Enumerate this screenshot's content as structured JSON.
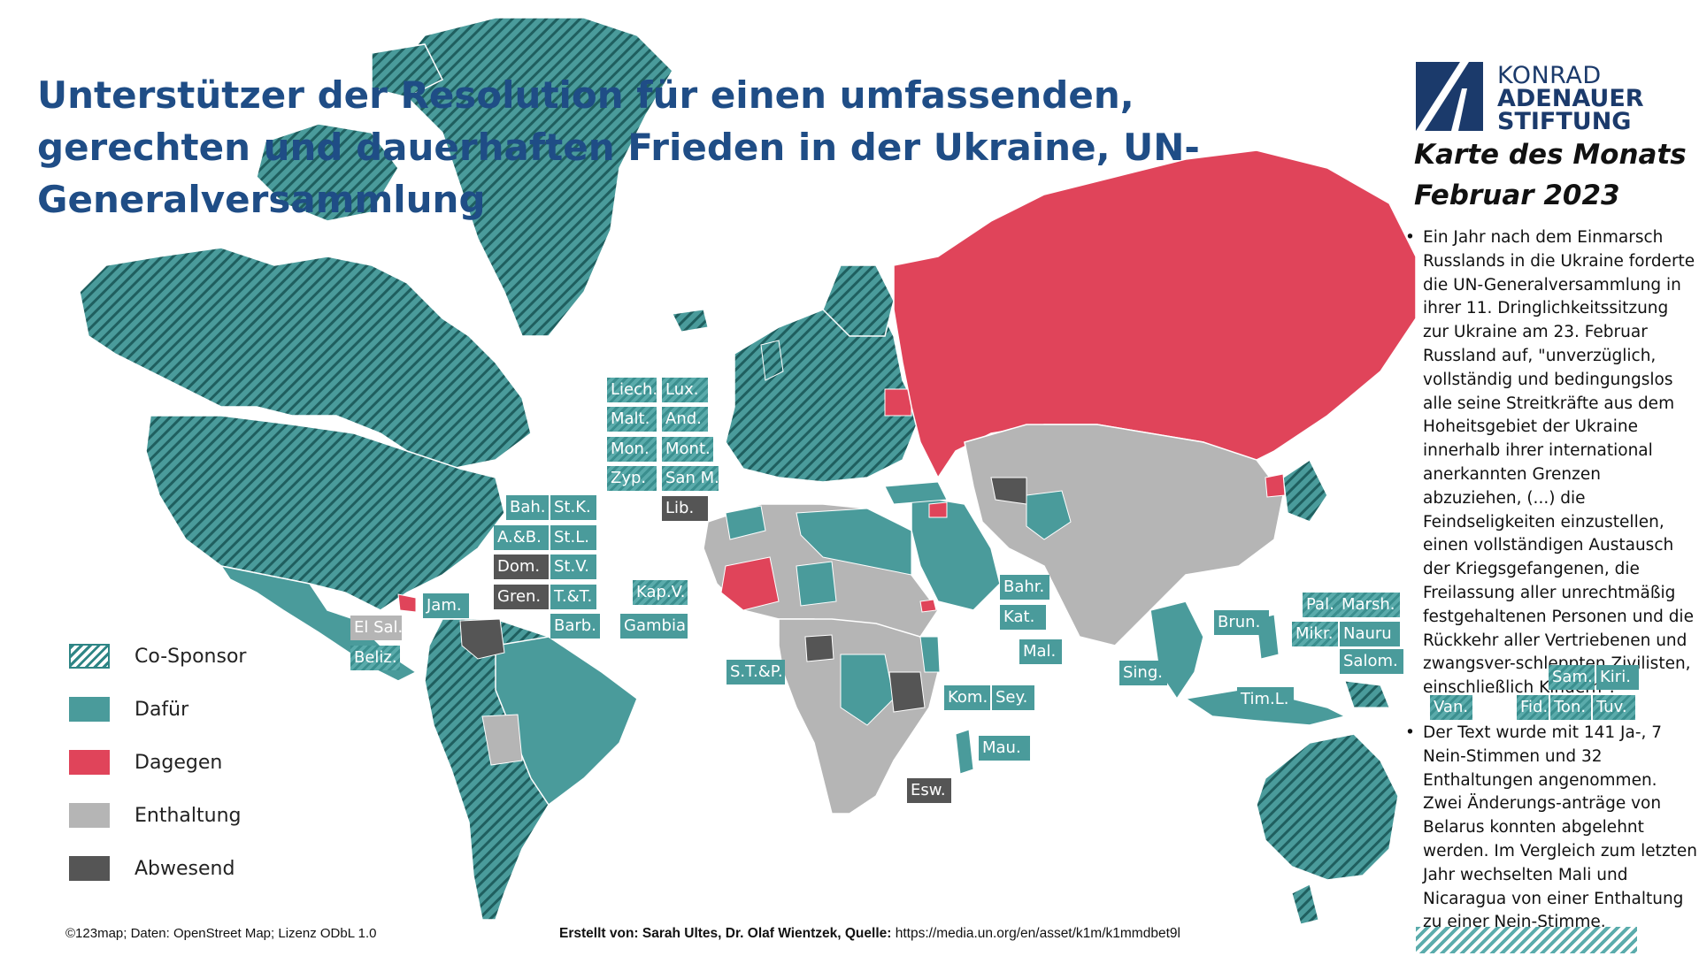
{
  "title": "Unterstützer der Resolution für einen umfassenden, gerechten und dauerhaften Frieden in der Ukraine, UN-Generalversammlung",
  "brand": {
    "line1": "KONRAD",
    "line2": "ADENAUER",
    "line3": "STIFTUNG",
    "color": "#1b3a6b"
  },
  "series_label": "Karte des Monats",
  "date_label": "Februar 2023",
  "info_points": [
    "Ein Jahr nach dem Einmarsch Russlands in die Ukraine forderte die UN-Generalversammlung in ihrer 11. Dringlichkeitssitzung zur Ukraine am 23. Februar Russland auf, \"unverzüglich, vollständig und bedingungslos alle seine Streitkräfte aus dem Hoheitsgebiet der Ukraine innerhalb ihrer international anerkannten Grenzen abzuziehen, (...) die Feindseligkeiten einzustellen, einen vollständigen Austausch der Kriegsgefangenen, die Freilassung aller unrechtmäßig festgehaltenen Personen und die Rückkehr aller Vertriebenen und zwangsver-schleppten Zivilisten, einschließlich Kindern\".",
    "Der Text wurde mit 141 Ja-, 7 Nein-Stimmen und 32 Enthaltungen angenommen. Zwei Änderungs-anträge von Belarus konnten abgelehnt werden. Im Vergleich zum letzten Jahr wechselten Mali und Nicaragua von einer Enthaltung zu einer Nein-Stimme."
  ],
  "legend": [
    {
      "label": "Co-Sponsor",
      "key": "co"
    },
    {
      "label": "Dafür",
      "key": "dafur"
    },
    {
      "label": "Dagegen",
      "key": "dagegen"
    },
    {
      "label": "Enthaltung",
      "key": "enthaltung"
    },
    {
      "label": "Abwesend",
      "key": "abwesend"
    }
  ],
  "colors": {
    "co": "#3b8f8f",
    "dafur": "#4a9b9b",
    "dagegen": "#e0445a",
    "enthaltung": "#b5b5b5",
    "abwesend": "#555555",
    "title": "#1f4d86"
  },
  "small_states": [
    {
      "label": "Liech.",
      "status": "co"
    },
    {
      "label": "Lux.",
      "status": "co"
    },
    {
      "label": "Malt.",
      "status": "co"
    },
    {
      "label": "And.",
      "status": "co"
    },
    {
      "label": "Mon.",
      "status": "co"
    },
    {
      "label": "Mont.",
      "status": "co"
    },
    {
      "label": "Zyp.",
      "status": "co"
    },
    {
      "label": "San M.",
      "status": "co"
    },
    {
      "label": "Lib.",
      "status": "abwesend"
    },
    {
      "label": "Bah.",
      "status": "dafur"
    },
    {
      "label": "St.K.",
      "status": "dafur"
    },
    {
      "label": "A.&B.",
      "status": "dafur"
    },
    {
      "label": "St.L.",
      "status": "dafur"
    },
    {
      "label": "Dom.",
      "status": "abwesend"
    },
    {
      "label": "St.V.",
      "status": "dafur"
    },
    {
      "label": "Gren.",
      "status": "abwesend"
    },
    {
      "label": "T.&T.",
      "status": "dafur"
    },
    {
      "label": "Barb.",
      "status": "dafur"
    },
    {
      "label": "Jam.",
      "status": "dafur"
    },
    {
      "label": "El Sal.",
      "status": "enthaltung"
    },
    {
      "label": "Beliz.",
      "status": "co"
    },
    {
      "label": "Kap.V.",
      "status": "co"
    },
    {
      "label": "Gambia",
      "status": "dafur"
    },
    {
      "label": "S.T.&P.",
      "status": "dafur"
    },
    {
      "label": "Kom.",
      "status": "dafur"
    },
    {
      "label": "Sey.",
      "status": "dafur"
    },
    {
      "label": "Mau.",
      "status": "dafur"
    },
    {
      "label": "Esw.",
      "status": "abwesend"
    },
    {
      "label": "Bahr.",
      "status": "dafur"
    },
    {
      "label": "Kat.",
      "status": "dafur"
    },
    {
      "label": "Mal.",
      "status": "dafur"
    },
    {
      "label": "Sing.",
      "status": "dafur"
    },
    {
      "label": "Brun.",
      "status": "dafur"
    },
    {
      "label": "Tim.L.",
      "status": "dafur"
    },
    {
      "label": "Pal.",
      "status": "co"
    },
    {
      "label": "Marsh.",
      "status": "co"
    },
    {
      "label": "Mikr.",
      "status": "co"
    },
    {
      "label": "Nauru",
      "status": "dafur"
    },
    {
      "label": "Salom.",
      "status": "dafur"
    },
    {
      "label": "Sam.",
      "status": "co"
    },
    {
      "label": "Kiri.",
      "status": "dafur"
    },
    {
      "label": "Van.",
      "status": "co"
    },
    {
      "label": "Fid.",
      "status": "co"
    },
    {
      "label": "Ton.",
      "status": "co"
    },
    {
      "label": "Tuv.",
      "status": "co"
    }
  ],
  "credit": "©123map; Daten: OpenStreet Map; Lizenz ODbL 1.0",
  "footer": {
    "prefix": "Erstellt von: Sarah Ultes, Dr. Olaf Wientzek, Quelle:",
    "url": "https://media.un.org/en/asset/k1m/k1mmdbet9l"
  }
}
